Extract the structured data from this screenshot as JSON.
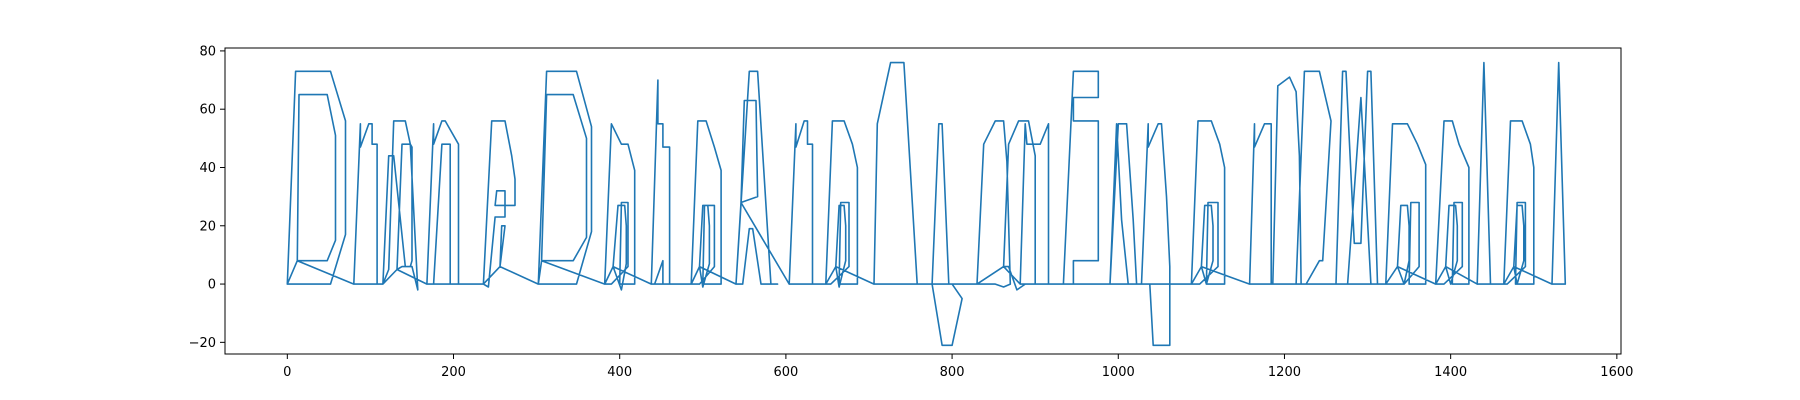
{
  "chart_data": {
    "type": "line",
    "title": "",
    "xlabel": "",
    "ylabel": "",
    "xlim": [
      -75,
      1605
    ],
    "ylim": [
      -24,
      81
    ],
    "grid": false,
    "legend": "none",
    "x_ticks": [
      0,
      200,
      400,
      600,
      800,
      1000,
      1200,
      1400,
      1600
    ],
    "y_ticks": [
      -20,
      0,
      20,
      40,
      60,
      80
    ],
    "x_tick_labels": [
      "0",
      "200",
      "400",
      "600",
      "800",
      "1000",
      "1200",
      "1400",
      "1600"
    ],
    "y_tick_labels": [
      "−20",
      "0",
      "20",
      "40",
      "60",
      "80"
    ],
    "series": [
      {
        "color": "#1f77b4",
        "values_note_free": true,
        "x": [
          0,
          10,
          52,
          70,
          70,
          52,
          10,
          0,
          12,
          14,
          48,
          58,
          58,
          48,
          14,
          12,
          80,
          88,
          88,
          98,
          102,
          102,
          108,
          108,
          98,
          88,
          80,
          115,
          122,
          128,
          142,
          148,
          157,
          157,
          150,
          142,
          128,
          122,
          115,
          132,
          138,
          148,
          150,
          150,
          148,
          138,
          132,
          168,
          176,
          176,
          186,
          190,
          206,
          206,
          196,
          196,
          186,
          176,
          168,
          236,
          246,
          262,
          270,
          274,
          274,
          250,
          252,
          262,
          262,
          250,
          242,
          236,
          256,
          258,
          262,
          256,
          302,
          312,
          348,
          366,
          366,
          348,
          312,
          302,
          306,
          312,
          344,
          360,
          360,
          344,
          312,
          306,
          382,
          390,
          402,
          410,
          418,
          418,
          400,
          402,
          410,
          410,
          390,
          382,
          392,
          398,
          406,
          408,
          408,
          402,
          392,
          438,
          446,
          446,
          452,
          452,
          460,
          460,
          452,
          452,
          442,
          438,
          486,
          494,
          504,
          514,
          522,
          522,
          500,
          502,
          514,
          514,
          496,
          486,
          496,
          500,
          506,
          508,
          508,
          500,
          496,
          540,
          556,
          566,
          582,
          590,
          570,
          560,
          556,
          548,
          540,
          546,
          550,
          564,
          566,
          546,
          604,
          612,
          612,
          622,
          626,
          626,
          632,
          632,
          622,
          612,
          604,
          648,
          656,
          670,
          680,
          686,
          686,
          664,
          666,
          676,
          676,
          654,
          648,
          660,
          664,
          670,
          672,
          672,
          664,
          660,
          706,
          710,
          726,
          742,
          758,
          744,
          722,
          718,
          716,
          710,
          706,
          776,
          784,
          788,
          796,
          800,
          812,
          800,
          788,
          776,
          830,
          838,
          852,
          862,
          866,
          870,
          862,
          852,
          838,
          830,
          862,
          868,
          880,
          892,
          900,
          900,
          888,
          878,
          868,
          862,
          882,
          888,
          890,
          906,
          916,
          916,
          906,
          890,
          888,
          882,
          934,
          946,
          976,
          976,
          946,
          946,
          976,
          976,
          946,
          946,
          976,
          976,
          934,
          990,
          1000,
          1010,
          1018,
          1022,
          1012,
          1004,
          998,
          990,
          1028,
          1036,
          1036,
          1048,
          1052,
          1058,
          1062,
          1062,
          1052,
          1042,
          1038,
          1028,
          1088,
          1096,
          1112,
          1122,
          1128,
          1128,
          1106,
          1108,
          1120,
          1120,
          1098,
          1088,
          1100,
          1104,
          1112,
          1114,
          1114,
          1106,
          1100,
          1158,
          1164,
          1164,
          1176,
          1184,
          1184,
          1176,
          1174,
          1158,
          1186,
          1192,
          1206,
          1214,
          1218,
          1220,
          1212,
          1200,
          1192,
          1186,
          1214,
          1224,
          1242,
          1256,
          1256,
          1246,
          1242,
          1226,
          1214,
          1262,
          1270,
          1274,
          1284,
          1292,
          1300,
          1304,
          1312,
          1304,
          1292,
          1276,
          1262,
          1322,
          1330,
          1348,
          1360,
          1370,
          1370,
          1350,
          1352,
          1362,
          1362,
          1344,
          1322,
          1336,
          1340,
          1348,
          1350,
          1350,
          1344,
          1336,
          1382,
          1392,
          1402,
          1410,
          1422,
          1422,
          1402,
          1404,
          1414,
          1414,
          1392,
          1382,
          1394,
          1398,
          1406,
          1408,
          1408,
          1400,
          1394,
          1432,
          1440,
          1440,
          1448,
          1448,
          1432,
          1432,
          1464,
          1472,
          1486,
          1496,
          1500,
          1500,
          1478,
          1480,
          1490,
          1490,
          1468,
          1464,
          1476,
          1480,
          1486,
          1488,
          1488,
          1480,
          1476,
          1522,
          1530,
          1530,
          1538,
          1538,
          1522,
          1522
        ],
        "y": [
          0,
          73,
          73,
          56,
          17,
          0,
          0,
          0,
          8,
          65,
          65,
          51,
          15,
          8,
          8,
          8,
          0,
          55,
          47,
          55,
          55,
          48,
          48,
          0,
          0,
          0,
          0,
          0,
          5,
          56,
          56,
          48,
          -2,
          -2,
          6,
          6,
          44,
          44,
          0,
          5,
          48,
          48,
          47,
          8,
          6,
          6,
          5,
          0,
          55,
          48,
          56,
          56,
          48,
          0,
          0,
          48,
          48,
          0,
          0,
          0,
          56,
          56,
          44,
          36,
          27,
          27,
          32,
          32,
          23,
          23,
          -1,
          0,
          6,
          20,
          20,
          6,
          0,
          73,
          73,
          54,
          18,
          0,
          0,
          0,
          8,
          65,
          65,
          50,
          16,
          8,
          8,
          8,
          0,
          55,
          48,
          48,
          39,
          0,
          0,
          28,
          28,
          6,
          0,
          0,
          6,
          27,
          27,
          20,
          7,
          -2,
          6,
          0,
          70,
          55,
          55,
          47,
          47,
          0,
          0,
          8,
          0,
          0,
          0,
          56,
          56,
          47,
          39,
          0,
          0,
          27,
          27,
          6,
          0,
          0,
          6,
          27,
          27,
          20,
          7,
          -1,
          6,
          0,
          73,
          73,
          0,
          0,
          0,
          19,
          19,
          0,
          0,
          28,
          63,
          63,
          30,
          28,
          0,
          55,
          47,
          56,
          56,
          48,
          48,
          0,
          0,
          0,
          0,
          0,
          56,
          56,
          48,
          40,
          0,
          0,
          28,
          28,
          6,
          0,
          0,
          6,
          27,
          27,
          20,
          8,
          -1,
          6,
          0,
          55,
          76,
          76,
          0,
          0,
          0,
          0,
          0,
          0,
          0,
          0,
          55,
          55,
          0,
          0,
          -5,
          -21,
          -21,
          0,
          0,
          48,
          56,
          56,
          42,
          0,
          -1,
          0,
          0,
          0,
          6,
          48,
          56,
          56,
          44,
          0,
          0,
          -2,
          6,
          6,
          0,
          55,
          48,
          48,
          55,
          0,
          0,
          0,
          0,
          0,
          0,
          73,
          73,
          64,
          64,
          56,
          56,
          8,
          8,
          0,
          0,
          0,
          0,
          0,
          55,
          55,
          22,
          0,
          0,
          22,
          55,
          0,
          0,
          55,
          47,
          55,
          55,
          30,
          6,
          -21,
          -21,
          -21,
          0,
          0,
          0,
          56,
          56,
          48,
          40,
          0,
          0,
          28,
          28,
          6,
          0,
          0,
          6,
          27,
          27,
          20,
          8,
          0,
          6,
          0,
          55,
          47,
          55,
          55,
          0,
          0,
          0,
          0,
          0,
          68,
          71,
          66,
          44,
          0,
          0,
          0,
          0,
          0,
          0,
          73,
          73,
          56,
          56,
          8,
          8,
          0,
          0,
          0,
          73,
          73,
          14,
          14,
          73,
          73,
          0,
          0,
          64,
          0,
          0,
          0,
          55,
          55,
          48,
          41,
          0,
          0,
          28,
          28,
          6,
          0,
          0,
          6,
          27,
          27,
          20,
          8,
          0,
          6,
          0,
          56,
          56,
          48,
          40,
          0,
          0,
          28,
          28,
          6,
          0,
          0,
          6,
          27,
          27,
          20,
          8,
          0,
          6,
          0,
          76,
          76,
          0,
          0,
          0,
          0,
          0,
          56,
          56,
          48,
          40,
          0,
          0,
          28,
          28,
          6,
          0,
          0,
          6,
          27,
          27,
          20,
          8,
          0,
          6,
          0,
          76,
          76,
          0,
          0,
          0,
          0
        ]
      }
    ]
  }
}
